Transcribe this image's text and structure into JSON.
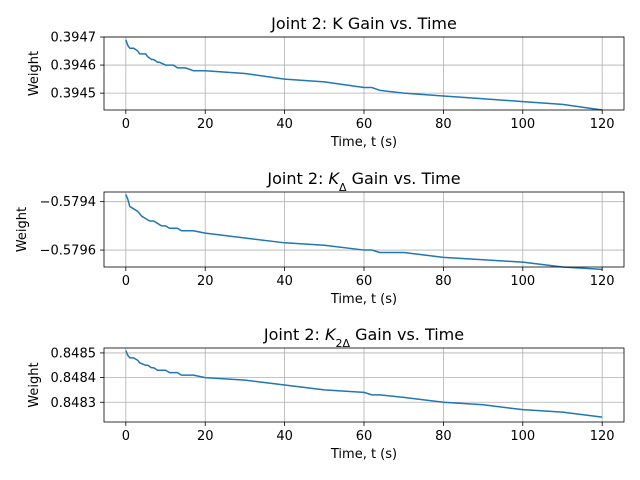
{
  "chart_data": [
    {
      "type": "line",
      "title": "Joint 2: K Gain vs. Time",
      "title_parts": [
        {
          "t": "Joint 2: K Gain vs. Time"
        }
      ],
      "xlabel": "Time, t (s)",
      "ylabel": "Weight",
      "xlim": [
        -5.5,
        125.5
      ],
      "ylim": [
        0.39444,
        0.3947
      ],
      "xticks": [
        0,
        20,
        40,
        60,
        80,
        100,
        120
      ],
      "yticks": [
        0.3945,
        0.3946,
        0.3947
      ],
      "ytick_labels": [
        "0.3945",
        "0.3946",
        "0.3947"
      ],
      "grid": true,
      "series": [
        {
          "color": "#1f77b4",
          "x": [
            0,
            0.5,
            1,
            2,
            3,
            3.5,
            5,
            5.5,
            6.5,
            7,
            8,
            8.5,
            10,
            11,
            12,
            13,
            14,
            15,
            17,
            20,
            30,
            40,
            50,
            60,
            62,
            64,
            70,
            80,
            90,
            100,
            110,
            120
          ],
          "y": [
            0.39469,
            0.39467,
            0.39466,
            0.39466,
            0.39465,
            0.39464,
            0.39464,
            0.39463,
            0.39462,
            0.39462,
            0.39461,
            0.39461,
            0.3946,
            0.3946,
            0.3946,
            0.39459,
            0.39459,
            0.39459,
            0.39458,
            0.39458,
            0.39457,
            0.39455,
            0.39454,
            0.39452,
            0.39452,
            0.39451,
            0.3945,
            0.39449,
            0.39448,
            0.39447,
            0.39446,
            0.39444
          ]
        }
      ]
    },
    {
      "type": "line",
      "title": "Joint 2: KΔ Gain vs. Time",
      "title_parts": [
        {
          "t": "Joint 2: "
        },
        {
          "t": "K",
          "italic": true
        },
        {
          "t": "Δ",
          "sub": true
        },
        {
          "t": " Gain vs. Time"
        }
      ],
      "xlabel": "Time, t (s)",
      "ylabel": "Weight",
      "xlim": [
        -5.5,
        125.5
      ],
      "ylim": [
        -0.57967,
        -0.57936
      ],
      "xticks": [
        0,
        20,
        40,
        60,
        80,
        100,
        120
      ],
      "yticks": [
        -0.5796,
        -0.5794
      ],
      "ytick_labels": [
        "−0.5796",
        "−0.5794"
      ],
      "grid": true,
      "series": [
        {
          "color": "#1f77b4",
          "x": [
            0,
            0.5,
            1,
            2,
            3,
            4,
            5,
            6,
            7,
            8,
            9,
            10,
            11,
            12,
            13,
            14,
            15,
            17,
            20,
            30,
            40,
            50,
            60,
            62,
            64,
            70,
            80,
            90,
            100,
            110,
            120
          ],
          "y": [
            -0.57937,
            -0.57939,
            -0.57942,
            -0.57943,
            -0.57944,
            -0.57946,
            -0.57947,
            -0.57948,
            -0.57948,
            -0.57949,
            -0.5795,
            -0.5795,
            -0.57951,
            -0.57951,
            -0.57951,
            -0.57952,
            -0.57952,
            -0.57952,
            -0.57953,
            -0.57955,
            -0.57957,
            -0.57958,
            -0.5796,
            -0.5796,
            -0.57961,
            -0.57961,
            -0.57963,
            -0.57964,
            -0.57965,
            -0.57967,
            -0.57968
          ]
        }
      ]
    },
    {
      "type": "line",
      "title": "Joint 2: K2Δ Gain vs. Time",
      "title_parts": [
        {
          "t": "Joint 2: "
        },
        {
          "t": "K",
          "italic": true
        },
        {
          "t": "2Δ",
          "sub": true
        },
        {
          "t": " Gain vs. Time"
        }
      ],
      "xlabel": "Time, t (s)",
      "ylabel": "Weight",
      "xlim": [
        -5.5,
        125.5
      ],
      "ylim": [
        0.84822,
        0.84852
      ],
      "xticks": [
        0,
        20,
        40,
        60,
        80,
        100,
        120
      ],
      "yticks": [
        0.8483,
        0.8484,
        0.8485
      ],
      "ytick_labels": [
        "0.8483",
        "0.8484",
        "0.8485"
      ],
      "grid": true,
      "series": [
        {
          "color": "#1f77b4",
          "x": [
            0,
            0.5,
            1,
            2,
            3,
            3.5,
            5,
            5.5,
            6.5,
            7,
            8,
            8.5,
            10,
            11,
            12,
            13,
            14,
            15,
            17,
            20,
            30,
            40,
            50,
            60,
            62,
            64,
            70,
            80,
            90,
            100,
            110,
            120
          ],
          "y": [
            0.84851,
            0.84849,
            0.84848,
            0.84848,
            0.84847,
            0.84846,
            0.84845,
            0.84845,
            0.84844,
            0.84844,
            0.84843,
            0.84843,
            0.84843,
            0.84842,
            0.84842,
            0.84842,
            0.84841,
            0.84841,
            0.84841,
            0.8484,
            0.84839,
            0.84837,
            0.84835,
            0.84834,
            0.84833,
            0.84833,
            0.84832,
            0.8483,
            0.84829,
            0.84827,
            0.84826,
            0.84824
          ]
        }
      ]
    }
  ]
}
